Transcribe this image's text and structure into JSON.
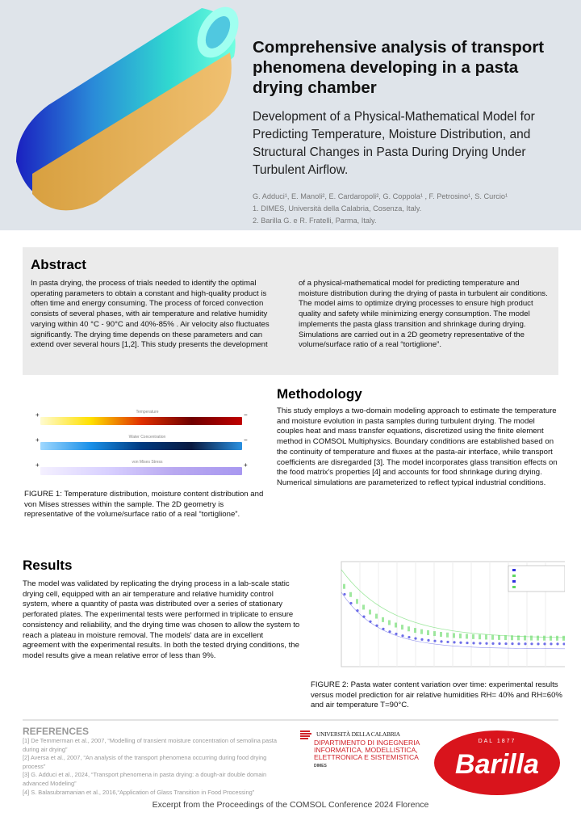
{
  "header": {
    "title": "Comprehensive analysis of transport phenomena developing in a pasta drying chamber",
    "subtitle": "Development of a Physical-Mathematical Model for Predicting Temperature, Moisture Distribution, and Structural Changes in Pasta During Drying Under Turbulent Airflow.",
    "authors": "G. Adduci¹, E. Manoli², E. Cardaropoli², G. Coppola¹ , F. Petrosino¹, S. Curcio¹",
    "affiliations": [
      "1. DIMES, Università della Calabria, Cosenza, Italy.",
      "2. Barilla G. e R. Fratelli, Parma, Italy."
    ]
  },
  "abstract": {
    "heading": "Abstract",
    "col1": "In pasta drying, the process of trials needed to identify the optimal operating parameters to obtain a constant and high-quality product is often time and energy consuming. The process of forced convection consists of several phases, with air temperature and relative humidity varying within 40 °C - 90°C and 40%-85% . Air velocity also fluctuates significantly. The drying time depends on these parameters and can extend over several hours [1,2]. This study presents the development",
    "col2": "of a physical-mathematical model for predicting temperature and moisture distribution during the drying of pasta in turbulent air conditions. The model aims to optimize drying processes to ensure high product quality and safety while minimizing energy consumption. The model implements the pasta glass transition and shrinkage during drying. Simulations are carried out in a 2D geometry representative of the volume/surface ratio of a real “tortiglione”."
  },
  "figure1": {
    "bars": [
      {
        "label": "Temperature",
        "colors": [
          "#fffbd0",
          "#ffe000",
          "#e03000",
          "#700000",
          "#c00000"
        ]
      },
      {
        "label": "Water Concentration",
        "colors": [
          "#9fd8ff",
          "#1a90e8",
          "#003a80",
          "#0a1a40",
          "#2a90e0"
        ]
      },
      {
        "label": "von Mises Stress",
        "colors": [
          "#f4f0ff",
          "#d8d0ff",
          "#b8a8f0",
          "#a898f0"
        ]
      }
    ],
    "caption": "FIGURE 1: Temperature distribution, moisture content distribution and von Mises stresses within the sample. The 2D geometry is representative of the volume/surface ratio of a real “tortiglione”."
  },
  "methodology": {
    "heading": "Methodology",
    "text": "This study employs a two-domain modeling approach to estimate the temperature and moisture evolution in pasta samples during turbulent drying. The model couples heat and mass transfer equations, discretized using the finite element method in COMSOL Multiphysics. Boundary conditions are established based on the continuity of temperature and fluxes at the pasta-air interface, while transport coefficients are disregarded [3]. The model incorporates glass transition effects on the food matrix's properties [4] and accounts for food shrinkage during drying. Numerical simulations are parameterized to reflect typical industrial conditions."
  },
  "results": {
    "heading": "Results",
    "text": "The model was validated by replicating the drying process in a lab-scale static drying cell, equipped with an air temperature and relative humidity control system, where a quantity of pasta was distributed over a series of stationary perforated plates. The experimental tests were performed in triplicate to ensure consistency and reliability, and the drying time was chosen to allow the system to reach a plateau in moisture removal. The models' data are in excellent agreement with the experimental results. In both the tested drying conditions, the model results give a mean relative error of less than 9%."
  },
  "figure2": {
    "caption": "FIGURE 2:  Pasta water content variation over time: experimental results versus model prediction for air relative humidities RH= 40% and RH=60% and air temperature T=90°C.",
    "colors": {
      "rh40": "#3030e0",
      "rh60": "#60d860"
    }
  },
  "references": {
    "heading": "REFERENCES",
    "items": [
      "[1] De Temmerman et al., 2007,  “Modelling of transient moisture concentration of semolina pasta during air drying”",
      "[2] Aversa et al., 2007, “An analysis of the transport phenomena occurring during food drying process”",
      "[3] G. Adduci et al., 2024, “Transport phenomena in pasta drying: a dough-air double domain advanced Modeling”",
      "[4] S. Balasubramanian et al., 2016,“Application of Glass Transition in Food Processing”"
    ]
  },
  "logos": {
    "unical_name": "UNIVERSITÀ DELLA CALABRIA",
    "dept": "DIPARTIMENTO DI INGEGNERIA INFORMATICA, MODELLISTICA, ELETTRONICA E SISTEMISTICA",
    "dept_short": "DIMES",
    "barilla_since": "DAL 1877",
    "barilla": "Barilla"
  },
  "footer": "Excerpt from the Proceedings of the COMSOL Conference 2024 Florence"
}
